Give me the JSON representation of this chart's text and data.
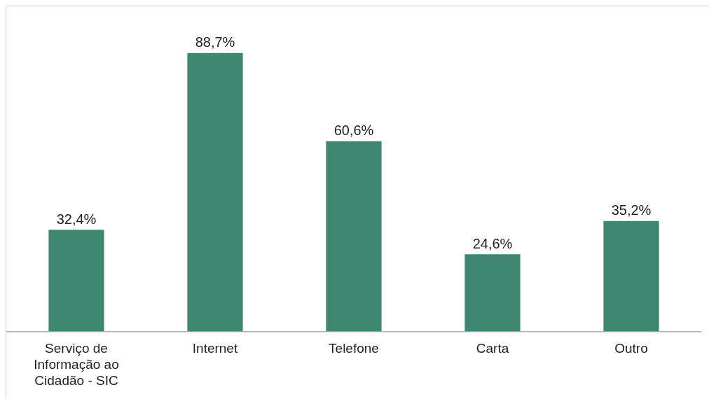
{
  "chart_data": {
    "type": "bar",
    "categories": [
      "Serviço de Informação ao Cidadão - SIC",
      "Internet",
      "Telefone",
      "Carta",
      "Outro"
    ],
    "values": [
      32.4,
      88.7,
      60.6,
      24.6,
      35.2
    ],
    "value_labels": [
      "32,4%",
      "88,7%",
      "60,6%",
      "24,6%",
      "35,2%"
    ],
    "color": "#3d8672",
    "grid": false,
    "legend": false,
    "tick_labels": "x"
  }
}
